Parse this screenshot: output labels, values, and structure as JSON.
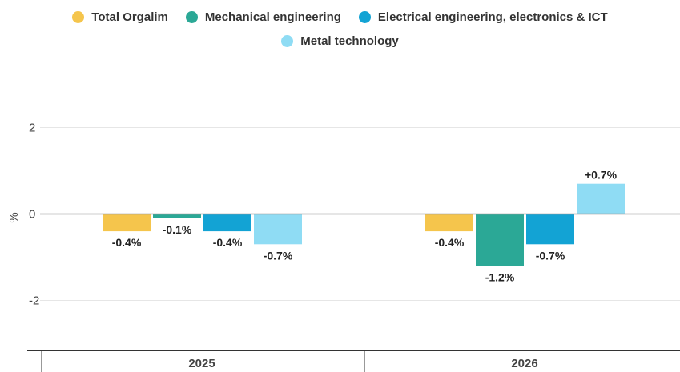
{
  "chart_data": {
    "type": "bar",
    "categories": [
      "2025",
      "2026"
    ],
    "series": [
      {
        "name": "Total Orgalim",
        "color": "#f5c54c",
        "values": [
          -0.4,
          -0.4
        ],
        "labels": [
          "-0.4%",
          "-0.4%"
        ]
      },
      {
        "name": "Mechanical engineering",
        "color": "#2ba896",
        "values": [
          -0.1,
          -1.2
        ],
        "labels": [
          "-0.1%",
          "-1.2%"
        ]
      },
      {
        "name": "Electrical engineering, electronics & ICT",
        "color": "#13a3d4",
        "values": [
          -0.4,
          -0.7
        ],
        "labels": [
          "-0.4%",
          "-0.7%"
        ]
      },
      {
        "name": "Metal technology",
        "color": "#8fdcf4",
        "values": [
          -0.7,
          0.7
        ],
        "labels": [
          "-0.7%",
          "+0.7%"
        ]
      }
    ],
    "ylabel": "%",
    "yticks": [
      2,
      0,
      -2
    ],
    "ylim": [
      -3.2,
      2.2
    ],
    "grid": true,
    "legend_position": "top"
  }
}
